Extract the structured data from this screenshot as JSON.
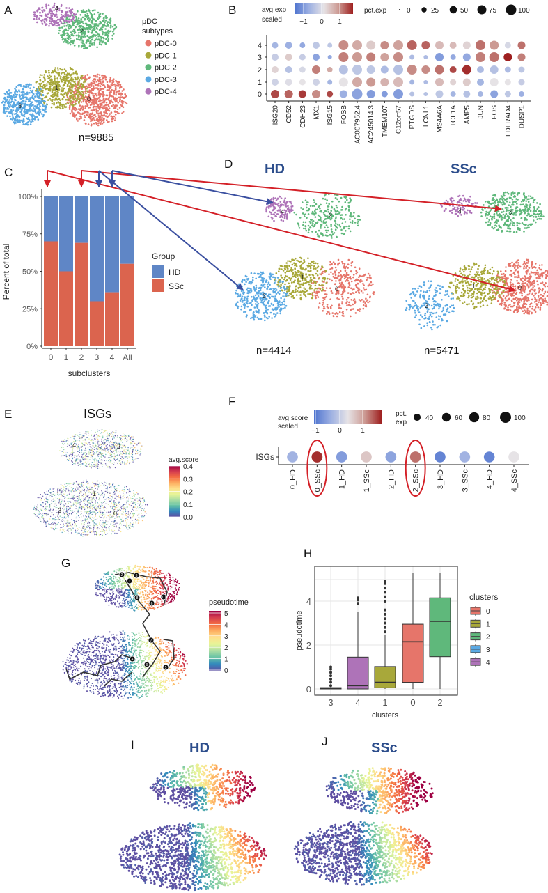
{
  "panel_letters": {
    "A": "A",
    "B": "B",
    "C": "C",
    "D": "D",
    "E": "E",
    "F": "F",
    "G": "G",
    "H": "H",
    "I": "I",
    "J": "J"
  },
  "colors": {
    "cluster": {
      "0": "#E6756A",
      "1": "#A8A83A",
      "2": "#5FB87B",
      "3": "#5BA9E3",
      "4": "#AE73B8"
    },
    "hd": "#5F86C6",
    "ssc": "#DB644E",
    "arrow_red": "#D42027",
    "arrow_blue": "#3A4FA0",
    "title_blue": "#2D4E8C"
  },
  "panel_a": {
    "legend_title": [
      "pDC",
      "subtypes"
    ],
    "legend": [
      {
        "label": "pDC-0",
        "cluster": "0"
      },
      {
        "label": "pDC-1",
        "cluster": "1"
      },
      {
        "label": "pDC-2",
        "cluster": "2"
      },
      {
        "label": "pDC-3",
        "cluster": "3"
      },
      {
        "label": "pDC-4",
        "cluster": "4"
      }
    ],
    "cluster_labels": [
      "0",
      "1",
      "2",
      "3",
      "4"
    ],
    "n": "n=9885"
  },
  "panel_d": {
    "hd": {
      "title": "HD",
      "n": "n=4414",
      "cluster_labels": [
        "0",
        "1",
        "2",
        "3",
        "4"
      ]
    },
    "ssc": {
      "title": "SSc",
      "n": "n=5471",
      "cluster_labels": [
        "0",
        "1",
        "2",
        "3",
        "4"
      ]
    }
  },
  "panel_e": {
    "title": "ISGs",
    "colorbar_title": "avg.score",
    "colorbar_ticks": [
      "0.0",
      "0.1",
      "0.2",
      "0.3",
      "0.4"
    ],
    "cluster_labels": [
      "0",
      "1",
      "2",
      "3",
      "4"
    ]
  },
  "panel_g": {
    "colorbar_title": "pseudotime",
    "colorbar_ticks": [
      "0",
      "1",
      "2",
      "3",
      "4",
      "5"
    ],
    "node_labels": [
      "2",
      "3",
      "1",
      "8",
      "6",
      "10",
      "7",
      "4",
      "9",
      "5"
    ]
  },
  "panel_i": {
    "title": "HD"
  },
  "panel_j": {
    "title": "SSc"
  },
  "chart_data": [
    {
      "id": "B",
      "type": "dot",
      "colorbar_title": [
        "avg.exp",
        "scaled"
      ],
      "colorbar_ticks": [
        "−1",
        "0",
        "1"
      ],
      "color_range": [
        -1.8,
        1.8
      ],
      "size_title": "pct.exp",
      "size_legend": [
        {
          "label": "0",
          "pct": 2
        },
        {
          "label": "25",
          "pct": 25
        },
        {
          "label": "50",
          "pct": 50
        },
        {
          "label": "75",
          "pct": 75
        },
        {
          "label": "100",
          "pct": 100
        }
      ],
      "rows": [
        "4",
        "3",
        "2",
        "1",
        "0"
      ],
      "genes": [
        "ISG20",
        "CD52",
        "CDH23",
        "MX1",
        "ISG15",
        "FOSB",
        "AC007952.4",
        "AC245014.3",
        "TMEM107",
        "C12orf57",
        "PTGDS",
        "LCNL1",
        "MS4A6A",
        "TCL1A",
        "LAMP5",
        "JUN",
        "FOS",
        "LDLRAD4",
        "DUSP1"
      ],
      "avg_exp_scaled_rows_4_to_0": [
        [
          -0.8,
          -0.9,
          -1.0,
          -0.5,
          -0.5,
          1.0,
          0.7,
          0.3,
          1.0,
          0.8,
          1.3,
          1.3,
          0.5,
          0.5,
          0.2,
          1.2,
          0.9,
          -0.2,
          1.2
        ],
        [
          -0.4,
          0.3,
          -0.4,
          -1.1,
          -1.0,
          1.1,
          0.9,
          1.1,
          0.8,
          1.0,
          -0.7,
          -0.7,
          -1.2,
          -1.0,
          -1.0,
          1.1,
          1.2,
          1.8,
          1.1
        ],
        [
          0.2,
          -0.6,
          -0.2,
          1.1,
          0.7,
          -0.6,
          -0.5,
          -0.5,
          -0.7,
          -0.6,
          1.0,
          1.0,
          1.2,
          1.5,
          1.7,
          -0.7,
          -0.6,
          -0.7,
          -0.5
        ],
        [
          -0.3,
          -0.1,
          0.0,
          -0.3,
          -0.8,
          0.0,
          0.7,
          0.9,
          0.6,
          0.5,
          -0.8,
          -0.7,
          0.5,
          0.2,
          0.3,
          -0.8,
          0.0,
          0.0,
          -0.4
        ],
        [
          1.5,
          1.3,
          1.6,
          1.0,
          1.5,
          -0.9,
          -1.1,
          -1.2,
          -1.2,
          -1.2,
          -0.6,
          -0.6,
          -0.5,
          -0.8,
          -0.6,
          -0.8,
          -1.1,
          -0.5,
          -0.9
        ]
      ],
      "pct_exp_rows_4_to_0": [
        [
          36,
          44,
          28,
          44,
          22,
          87,
          87,
          75,
          64,
          87,
          87,
          64,
          64,
          44,
          54,
          87,
          75,
          36,
          54
        ],
        [
          44,
          44,
          36,
          44,
          16,
          87,
          87,
          75,
          64,
          87,
          22,
          16,
          64,
          28,
          54,
          87,
          87,
          64,
          54
        ],
        [
          44,
          44,
          36,
          64,
          28,
          75,
          87,
          64,
          54,
          87,
          87,
          64,
          75,
          44,
          75,
          44,
          64,
          36,
          36
        ],
        [
          44,
          44,
          36,
          44,
          22,
          75,
          87,
          75,
          64,
          87,
          22,
          16,
          64,
          36,
          54,
          44,
          64,
          36,
          36
        ],
        [
          64,
          64,
          54,
          64,
          36,
          54,
          100,
          64,
          36,
          87,
          22,
          16,
          54,
          28,
          44,
          28,
          54,
          36,
          28
        ]
      ]
    },
    {
      "id": "C",
      "type": "bar",
      "stacked": true,
      "categories": [
        "0",
        "1",
        "2",
        "3",
        "4",
        "All"
      ],
      "series": [
        {
          "name": "HD",
          "values": [
            30,
            50,
            31,
            70,
            64,
            45
          ]
        },
        {
          "name": "SSc",
          "values": [
            70,
            50,
            69,
            30,
            36,
            55
          ]
        }
      ],
      "ylabel": "Percent of total",
      "xlabel": "subclusters",
      "ylim": [
        0,
        100
      ],
      "yticks": [
        "0%",
        "25%",
        "50%",
        "75%",
        "100%"
      ],
      "legend_title": "Group"
    },
    {
      "id": "F",
      "type": "dot",
      "colorbar_title": [
        "avg.score",
        "scaled"
      ],
      "colorbar_ticks": [
        "−1",
        "0",
        "1"
      ],
      "color_range": [
        -1.2,
        1.8
      ],
      "size_title": [
        "pct.",
        "exp"
      ],
      "size_legend": [
        {
          "label": "40",
          "pct": 40
        },
        {
          "label": "60",
          "pct": 60
        },
        {
          "label": "80",
          "pct": 80
        },
        {
          "label": "100",
          "pct": 100
        }
      ],
      "row": "ISGs",
      "categories": [
        "0_HD",
        "0_SSc",
        "1_HD",
        "1_SSc",
        "2_HD",
        "2_SSc",
        "3_HD",
        "3_SSc",
        "4_HD",
        "4_SSc"
      ],
      "avg_score_scaled": [
        -0.4,
        1.7,
        -0.7,
        0.6,
        -0.6,
        1.3,
        -1.0,
        -0.4,
        -1.0,
        0.3
      ],
      "pct_exp": [
        96,
        97,
        96,
        96,
        96,
        97,
        95,
        96,
        95,
        96
      ],
      "highlighted": [
        "0_SSc",
        "2_SSc"
      ]
    },
    {
      "id": "H",
      "type": "box",
      "categories": [
        "3",
        "4",
        "1",
        "0",
        "2"
      ],
      "boxes": [
        {
          "cluster": "3",
          "min": 0,
          "q1": 0,
          "median": 0.02,
          "q3": 0.06,
          "max": 0.08,
          "outliers": [
            0.15,
            0.3,
            0.45,
            0.6,
            0.75,
            0.9,
            1.0
          ]
        },
        {
          "cluster": "4",
          "min": 0,
          "q1": 0,
          "median": 0.15,
          "q3": 1.45,
          "max": 3.5,
          "outliers": [
            3.9,
            4.05,
            4.15
          ]
        },
        {
          "cluster": "1",
          "min": 0,
          "q1": 0.05,
          "median": 0.3,
          "q3": 1.02,
          "max": 2.45,
          "outliers": [
            2.6,
            2.8,
            3.0,
            3.2,
            3.4,
            3.6,
            4.0,
            4.2,
            4.4,
            4.6,
            4.8,
            4.9
          ]
        },
        {
          "cluster": "0",
          "min": 0,
          "q1": 0.3,
          "median": 2.15,
          "q3": 2.95,
          "max": 5.3,
          "outliers": []
        },
        {
          "cluster": "2",
          "min": 0,
          "q1": 1.47,
          "median": 3.08,
          "q3": 4.15,
          "max": 5.3,
          "outliers": []
        }
      ],
      "ylabel": "pseudotime",
      "xlabel": "clusters",
      "ylim": [
        -0.29,
        5.59
      ],
      "yticks": [
        "0",
        "2",
        "4"
      ],
      "legend_title": "clusters",
      "legend": [
        "0",
        "1",
        "2",
        "3",
        "4"
      ]
    }
  ]
}
